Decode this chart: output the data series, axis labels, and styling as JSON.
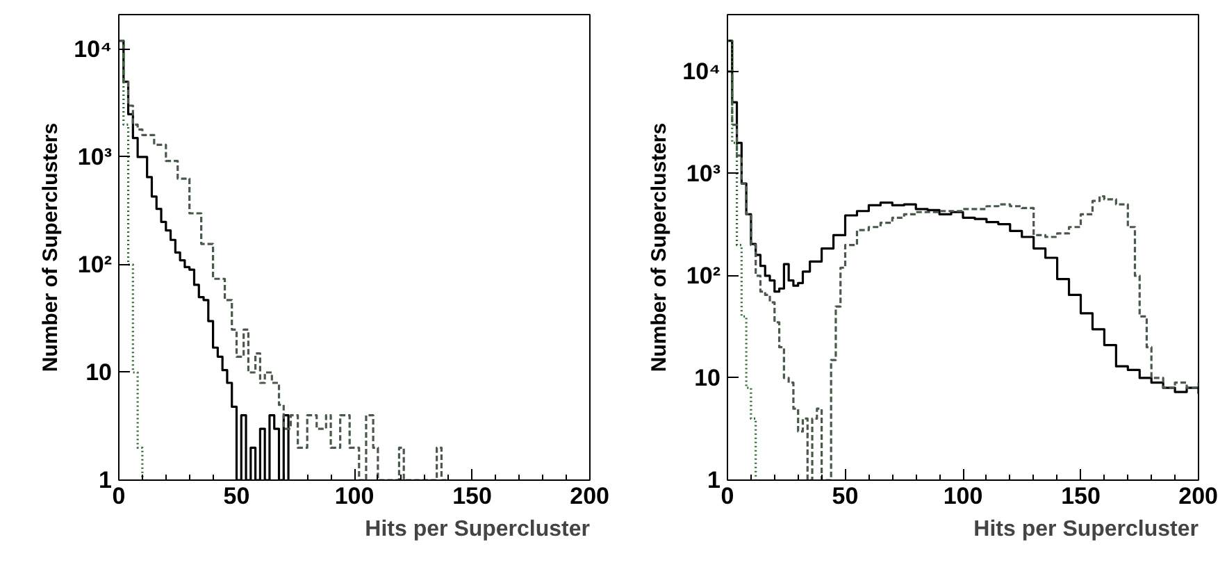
{
  "chart_data": [
    {
      "type": "step",
      "xlabel": "Hits per Supercluster",
      "ylabel": "Number of Superclusters",
      "log": "y",
      "grid": false,
      "xlim": [
        0,
        200
      ],
      "xticks": [
        0,
        50,
        100,
        150,
        200
      ],
      "ylim": [
        1,
        21000
      ],
      "yticks": [
        1,
        10,
        {
          "value": 100,
          "label": "10²"
        },
        {
          "value": 1000,
          "label": "10³"
        },
        {
          "value": 10000,
          "label": "10⁴"
        }
      ],
      "series": [
        {
          "color": "#000000",
          "line_style": "solid",
          "x": [
            0,
            2,
            4,
            6,
            8,
            10,
            12,
            14,
            16,
            18,
            20,
            22,
            24,
            26,
            28,
            30,
            32,
            34,
            36,
            38,
            40,
            42,
            44,
            46,
            48,
            50,
            52,
            54,
            56,
            58,
            60,
            62,
            64,
            66,
            68,
            70,
            72
          ],
          "values": [
            12000,
            5000,
            2500,
            1500,
            1000,
            1000,
            650,
            430,
            330,
            250,
            208,
            170,
            130,
            110,
            95,
            90,
            65,
            50,
            47,
            30,
            17,
            14,
            10.5,
            8,
            4.8,
            1,
            4,
            1,
            2,
            1,
            3,
            1,
            4,
            3,
            1,
            4,
            1
          ]
        },
        {
          "color": "#4a5a4a",
          "line_style": "dashed",
          "x": [
            0,
            2,
            4,
            6,
            8,
            10,
            15,
            20,
            25,
            30,
            35,
            40,
            45,
            48,
            50,
            53,
            55,
            58,
            60,
            62,
            65,
            68,
            70,
            73,
            76,
            80,
            84,
            88,
            90,
            94,
            98,
            102,
            105,
            108,
            110,
            115,
            119,
            121,
            125,
            135,
            137,
            139
          ],
          "values": [
            12000,
            5000,
            3000,
            2000,
            1800,
            1600,
            1300,
            920,
            630,
            300,
            156,
            74,
            47,
            25,
            14,
            25,
            10,
            15,
            8,
            10,
            8,
            5,
            3,
            4,
            2,
            4,
            3,
            4,
            2,
            4,
            2,
            1,
            4,
            2,
            1,
            1,
            2,
            1,
            1,
            2,
            1,
            1
          ]
        },
        {
          "color": "#2e6b2e",
          "line_style": "dotted",
          "x": [
            0,
            2,
            4,
            6,
            8,
            10,
            12
          ],
          "values": [
            12000,
            2000,
            100,
            10,
            2,
            1,
            1
          ]
        }
      ]
    },
    {
      "type": "step",
      "xlabel": "Hits per Supercluster",
      "ylabel": "Number of Superclusters",
      "log": "y",
      "grid": false,
      "xlim": [
        0,
        200
      ],
      "xticks": [
        0,
        50,
        100,
        150,
        200
      ],
      "ylim": [
        1,
        36000
      ],
      "yticks": [
        1,
        10,
        {
          "value": 100,
          "label": "10²"
        },
        {
          "value": 1000,
          "label": "10³"
        },
        {
          "value": 10000,
          "label": "10⁴"
        }
      ],
      "series": [
        {
          "color": "#000000",
          "line_style": "solid",
          "x": [
            0,
            2,
            4,
            6,
            8,
            10,
            12,
            14,
            16,
            18,
            20,
            22,
            24,
            26,
            28,
            30,
            32,
            35,
            40,
            45,
            50,
            55,
            60,
            65,
            70,
            75,
            80,
            85,
            90,
            95,
            100,
            105,
            110,
            115,
            120,
            125,
            130,
            135,
            140,
            145,
            150,
            155,
            160,
            165,
            170,
            175,
            180,
            185,
            190,
            195,
            200
          ],
          "values": [
            20000,
            5000,
            2000,
            800,
            400,
            205,
            160,
            125,
            100,
            90,
            70,
            75,
            130,
            90,
            80,
            85,
            110,
            138,
            185,
            250,
            390,
            430,
            490,
            520,
            490,
            500,
            450,
            440,
            400,
            420,
            370,
            360,
            335,
            320,
            275,
            240,
            185,
            150,
            93,
            65,
            43,
            30,
            21,
            13,
            12,
            10,
            9,
            8,
            7.3,
            8,
            7
          ]
        },
        {
          "color": "#4a5a4a",
          "line_style": "dashed",
          "x": [
            0,
            2,
            4,
            6,
            8,
            10,
            12,
            14,
            16,
            18,
            20,
            22,
            24,
            26,
            28,
            30,
            32,
            34,
            36,
            38,
            40,
            42,
            44,
            46,
            48,
            50,
            55,
            60,
            65,
            70,
            75,
            80,
            90,
            100,
            110,
            115,
            120,
            125,
            130,
            135,
            140,
            145,
            150,
            155,
            158,
            160,
            165,
            170,
            173,
            175,
            178,
            180,
            185,
            190,
            195,
            200
          ],
          "values": [
            10000,
            3000,
            1500,
            800,
            400,
            200,
            100,
            70,
            65,
            55,
            35,
            20,
            10,
            9,
            5,
            3,
            4,
            1,
            4,
            5,
            1,
            1,
            15,
            50,
            120,
            200,
            280,
            300,
            330,
            370,
            400,
            420,
            430,
            450,
            480,
            500,
            480,
            460,
            250,
            240,
            260,
            300,
            400,
            540,
            600,
            560,
            500,
            300,
            100,
            40,
            20,
            10,
            8,
            9,
            8,
            9
          ]
        },
        {
          "color": "#2e6b2e",
          "line_style": "dotted",
          "x": [
            0,
            2,
            4,
            6,
            8,
            10,
            12
          ],
          "values": [
            20000,
            2000,
            200,
            40,
            8,
            4,
            1
          ]
        }
      ]
    }
  ]
}
